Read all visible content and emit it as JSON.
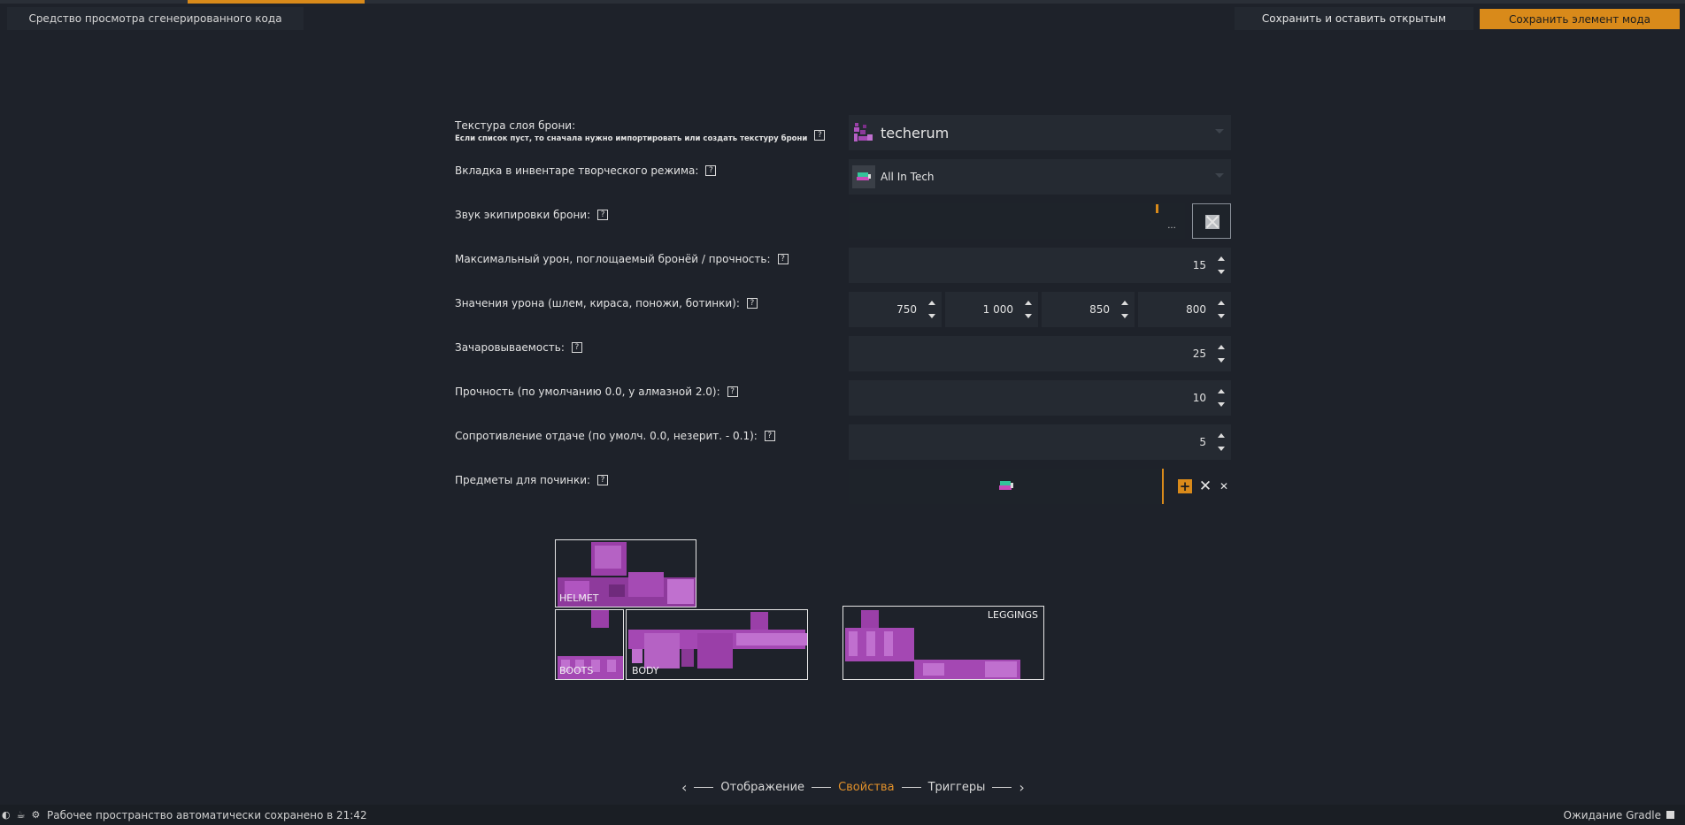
{
  "header": {
    "code_viewer_label": "Средство просмотра сгенерированного кода",
    "save_open_label": "Сохранить и оставить открытым",
    "save_mod_label": "Сохранить элемент мода",
    "accent_color": "#d98a1a"
  },
  "form": {
    "texture": {
      "label": "Текстура слоя брони:",
      "sublabel": "Если список пуст, то сначала нужно импортировать или создать текстуру брони",
      "value": "techerum"
    },
    "creative_tab": {
      "label": "Вкладка в инвентаре творческого режима:",
      "value": "All In Tech"
    },
    "equip_sound": {
      "label": "Звук экипировки брони:",
      "warning": "!",
      "browse": "..."
    },
    "max_damage": {
      "label": "Максимальный урон, поглощаемый бронёй / прочность:",
      "value": "15"
    },
    "damage_values": {
      "label": "Значения урона (шлем, кираса, поножи, ботинки):",
      "helmet": "750",
      "chestplate": "1 000",
      "leggings": "850",
      "boots": "800"
    },
    "enchantability": {
      "label": "Зачаровываемость:",
      "value": "25"
    },
    "toughness": {
      "label": "Прочность (по умолчанию 0.0, у алмазной 2.0):",
      "value": "10"
    },
    "knockback": {
      "label": "Сопротивление отдаче (по умолч. 0.0, незерит. - 0.1):",
      "value": "5"
    },
    "repair_items": {
      "label": "Предметы для починки:",
      "add": "+",
      "remove": "✕",
      "clear": "✕"
    }
  },
  "preview": {
    "helmet": "HELMET",
    "boots": "BOOTS",
    "body": "BODY",
    "leggings": "LEGGINGS"
  },
  "steps": {
    "prev": "‹",
    "appearance": "Отображение",
    "properties": "Свойства",
    "triggers": "Триггеры",
    "next": "›"
  },
  "statusbar": {
    "message": "Рабочее пространство автоматически сохранено в 21:42",
    "gradle": "Ожидание Gradle"
  }
}
